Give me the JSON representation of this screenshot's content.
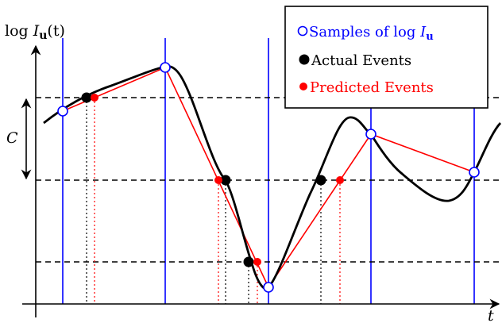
{
  "axes": {
    "y_label_pre": "log ",
    "y_label_var": "I",
    "y_label_sub": "u",
    "y_label_post": "(t)",
    "x_label": "t",
    "c_label": "C"
  },
  "legend": {
    "items": [
      {
        "label_pre": "Samples of log ",
        "label_var": "I",
        "label_sub": "u",
        "color": "#0000ff",
        "marker": "open-circle"
      },
      {
        "label_pre": "Actual Events",
        "label_var": "",
        "label_sub": "",
        "color": "#000000",
        "marker": "filled-circle"
      },
      {
        "label_pre": "Predicted Events",
        "label_var": "",
        "label_sub": "",
        "color": "#ff0000",
        "marker": "filled-circle"
      }
    ]
  },
  "colors": {
    "signal": "#000000",
    "sample_lines": "#0000ff",
    "prediction": "#ff0000",
    "thresholds": "#000000"
  }
}
